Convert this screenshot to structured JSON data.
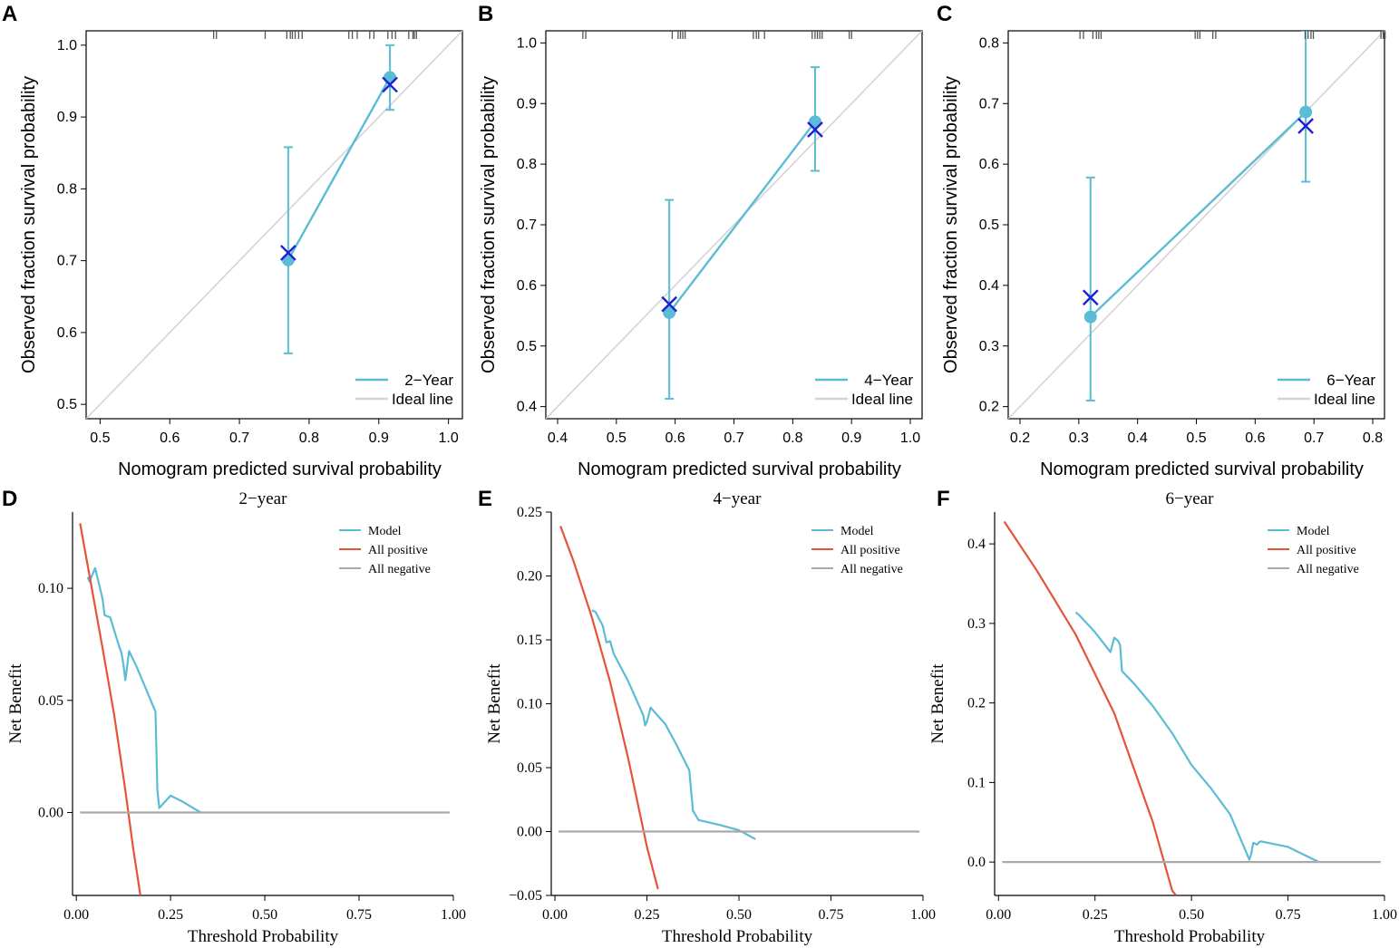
{
  "colors": {
    "model": "#5bbcd6",
    "ideal": "#d4d4d4",
    "cross": "#1f1fd6",
    "all_positive": "#e5533b",
    "all_negative": "#a9a9a9",
    "axis": "#000000"
  },
  "chart_data": [
    {
      "panel": "A",
      "type": "line",
      "title": "",
      "xlabel": "Nomogram predicted survival probability",
      "ylabel": "Observed fraction survival probability",
      "xlim": [
        0.48,
        1.02
      ],
      "ylim": [
        0.48,
        1.02
      ],
      "xticks": [
        0.5,
        0.6,
        0.7,
        0.8,
        0.9,
        1.0
      ],
      "yticks": [
        0.5,
        0.6,
        0.7,
        0.8,
        0.9,
        1.0
      ],
      "xtick_labels": [
        "0.5",
        "0.6",
        "0.7",
        "0.8",
        "0.9",
        "1.0"
      ],
      "ytick_labels": [
        "0.5",
        "0.6",
        "0.7",
        "0.8",
        "0.9",
        "1.0"
      ],
      "legend": [
        {
          "label": "2−Year",
          "color": "model"
        },
        {
          "label": "Ideal line",
          "color": "ideal"
        }
      ],
      "ideal_line": [
        [
          0.48,
          0.48
        ],
        [
          1.02,
          1.02
        ]
      ],
      "points": [
        {
          "x": 0.77,
          "y": 0.701,
          "lo": 0.571,
          "hi": 0.858
        },
        {
          "x": 0.916,
          "y": 0.955,
          "lo": 0.91,
          "hi": 1.0
        }
      ],
      "crosses": [
        {
          "x": 0.77,
          "y": 0.711
        },
        {
          "x": 0.916,
          "y": 0.945
        }
      ],
      "rug": [
        0.663,
        0.667,
        0.737,
        0.768,
        0.773,
        0.776,
        0.78,
        0.785,
        0.79,
        0.857,
        0.862,
        0.869,
        0.887,
        0.893,
        0.913,
        0.919,
        0.924,
        0.943,
        0.949,
        0.951,
        0.954
      ]
    },
    {
      "panel": "B",
      "type": "line",
      "title": "",
      "xlabel": "Nomogram predicted survival probability",
      "ylabel": "Observed fraction survival probability",
      "xlim": [
        0.38,
        1.02
      ],
      "ylim": [
        0.38,
        1.02
      ],
      "xticks": [
        0.4,
        0.5,
        0.6,
        0.7,
        0.8,
        0.9,
        1.0
      ],
      "yticks": [
        0.4,
        0.5,
        0.6,
        0.7,
        0.8,
        0.9,
        1.0
      ],
      "xtick_labels": [
        "0.4",
        "0.5",
        "0.6",
        "0.7",
        "0.8",
        "0.9",
        "1.0"
      ],
      "ytick_labels": [
        "0.4",
        "0.5",
        "0.6",
        "0.7",
        "0.8",
        "0.9",
        "1.0"
      ],
      "legend": [
        {
          "label": "4−Year",
          "color": "model"
        },
        {
          "label": "Ideal line",
          "color": "ideal"
        }
      ],
      "ideal_line": [
        [
          0.38,
          0.38
        ],
        [
          1.02,
          1.02
        ]
      ],
      "points": [
        {
          "x": 0.59,
          "y": 0.555,
          "lo": 0.413,
          "hi": 0.741
        },
        {
          "x": 0.838,
          "y": 0.87,
          "lo": 0.789,
          "hi": 0.96
        }
      ],
      "crosses": [
        {
          "x": 0.59,
          "y": 0.569
        },
        {
          "x": 0.838,
          "y": 0.857
        }
      ],
      "rug": [
        0.443,
        0.448,
        0.595,
        0.605,
        0.609,
        0.613,
        0.617,
        0.733,
        0.738,
        0.742,
        0.752,
        0.833,
        0.838,
        0.842,
        0.846,
        0.85,
        0.896,
        0.9
      ]
    },
    {
      "panel": "C",
      "type": "line",
      "title": "",
      "xlabel": "Nomogram predicted survival probability",
      "ylabel": "Observed fraction survival probability",
      "xlim": [
        0.18,
        0.82
      ],
      "ylim": [
        0.18,
        0.82
      ],
      "xticks": [
        0.2,
        0.3,
        0.4,
        0.5,
        0.6,
        0.7,
        0.8
      ],
      "yticks": [
        0.2,
        0.3,
        0.4,
        0.5,
        0.6,
        0.7,
        0.8
      ],
      "xtick_labels": [
        "0.2",
        "0.3",
        "0.4",
        "0.5",
        "0.6",
        "0.7",
        "0.8"
      ],
      "ytick_labels": [
        "0.2",
        "0.3",
        "0.4",
        "0.5",
        "0.6",
        "0.7",
        "0.8"
      ],
      "legend": [
        {
          "label": "6−Year",
          "color": "model"
        },
        {
          "label": "Ideal line",
          "color": "ideal"
        }
      ],
      "ideal_line": [
        [
          0.18,
          0.18
        ],
        [
          0.82,
          0.82
        ]
      ],
      "points": [
        {
          "x": 0.32,
          "y": 0.348,
          "lo": 0.21,
          "hi": 0.578
        },
        {
          "x": 0.686,
          "y": 0.686,
          "lo": 0.571,
          "hi": 0.82
        }
      ],
      "crosses": [
        {
          "x": 0.32,
          "y": 0.38
        },
        {
          "x": 0.686,
          "y": 0.663
        }
      ],
      "rug": [
        0.302,
        0.308,
        0.324,
        0.33,
        0.334,
        0.338,
        0.498,
        0.502,
        0.506,
        0.528,
        0.533,
        0.685,
        0.69,
        0.695,
        0.699,
        0.814,
        0.818,
        0.821
      ]
    },
    {
      "panel": "D",
      "type": "line",
      "title": "2−year",
      "xlabel": "Threshold Probability",
      "ylabel": "Net Benefit",
      "xlim": [
        -0.01,
        1.0
      ],
      "ylim": [
        -0.037,
        0.134
      ],
      "xticks": [
        0.0,
        0.25,
        0.5,
        0.75,
        1.0
      ],
      "yticks": [
        0.0,
        0.05,
        0.1
      ],
      "xtick_labels": [
        "0.00",
        "0.25",
        "0.50",
        "0.75",
        "1.00"
      ],
      "ytick_labels": [
        "0.00",
        "0.05",
        "0.10"
      ],
      "legend": [
        {
          "label": "Model",
          "color": "model"
        },
        {
          "label": "All positive",
          "color": "all_positive"
        },
        {
          "label": "All negative",
          "color": "all_negative"
        }
      ],
      "series": [
        {
          "name": "Model",
          "color": "model",
          "x": [
            0.03,
            0.035,
            0.05,
            0.07,
            0.075,
            0.09,
            0.11,
            0.12,
            0.125,
            0.13,
            0.14,
            0.16,
            0.2,
            0.21,
            0.215,
            0.22,
            0.25,
            0.28,
            0.33
          ],
          "y": [
            0.105,
            0.103,
            0.109,
            0.095,
            0.088,
            0.087,
            0.076,
            0.071,
            0.066,
            0.059,
            0.072,
            0.065,
            0.049,
            0.045,
            0.01,
            0.002,
            0.0075,
            0.005,
            0.0
          ]
        },
        {
          "name": "All positive",
          "color": "all_positive",
          "x": [
            0.01,
            0.04,
            0.07,
            0.1,
            0.13,
            0.15,
            0.17
          ],
          "y": [
            0.129,
            0.101,
            0.073,
            0.044,
            0.01,
            -0.015,
            -0.037
          ]
        },
        {
          "name": "All negative",
          "color": "all_negative",
          "x": [
            0.01,
            0.99
          ],
          "y": [
            0.0,
            0.0
          ]
        }
      ]
    },
    {
      "panel": "E",
      "type": "line",
      "title": "4−year",
      "xlabel": "Threshold Probability",
      "ylabel": "Net Benefit",
      "xlim": [
        -0.01,
        1.0
      ],
      "ylim": [
        -0.05,
        0.25
      ],
      "xticks": [
        0.0,
        0.25,
        0.5,
        0.75,
        1.0
      ],
      "yticks": [
        -0.05,
        0.0,
        0.05,
        0.1,
        0.15,
        0.2,
        0.25
      ],
      "xtick_labels": [
        "0.00",
        "0.25",
        "0.50",
        "0.75",
        "1.00"
      ],
      "ytick_labels": [
        "−0.05",
        "0.00",
        "0.05",
        "0.10",
        "0.15",
        "0.20",
        "0.25"
      ],
      "legend": [
        {
          "label": "Model",
          "color": "model"
        },
        {
          "label": "All positive",
          "color": "all_positive"
        },
        {
          "label": "All negative",
          "color": "all_negative"
        }
      ],
      "series": [
        {
          "name": "Model",
          "color": "model",
          "x": [
            0.1,
            0.11,
            0.13,
            0.14,
            0.15,
            0.16,
            0.2,
            0.24,
            0.245,
            0.25,
            0.26,
            0.3,
            0.33,
            0.365,
            0.375,
            0.38,
            0.39,
            0.45,
            0.5,
            0.545
          ],
          "y": [
            0.173,
            0.172,
            0.161,
            0.148,
            0.149,
            0.139,
            0.117,
            0.091,
            0.083,
            0.086,
            0.097,
            0.084,
            0.068,
            0.048,
            0.016,
            0.014,
            0.009,
            0.005,
            0.001,
            -0.006
          ]
        },
        {
          "name": "All positive",
          "color": "all_positive",
          "x": [
            0.015,
            0.05,
            0.1,
            0.15,
            0.2,
            0.25,
            0.28
          ],
          "y": [
            0.239,
            0.212,
            0.168,
            0.117,
            0.056,
            -0.012,
            -0.045
          ]
        },
        {
          "name": "All negative",
          "color": "all_negative",
          "x": [
            0.01,
            0.99
          ],
          "y": [
            0.0,
            0.0
          ]
        }
      ]
    },
    {
      "panel": "F",
      "type": "line",
      "title": "6−year",
      "xlabel": "Threshold Probability",
      "ylabel": "Net Benefit",
      "xlim": [
        -0.01,
        1.0
      ],
      "ylim": [
        -0.042,
        0.44
      ],
      "xticks": [
        0.0,
        0.25,
        0.5,
        0.75,
        1.0
      ],
      "yticks": [
        0.0,
        0.1,
        0.2,
        0.3,
        0.4
      ],
      "xtick_labels": [
        "0.00",
        "0.25",
        "0.50",
        "0.75",
        "1.00"
      ],
      "ytick_labels": [
        "0.0",
        "0.1",
        "0.2",
        "0.3",
        "0.4"
      ],
      "legend": [
        {
          "label": "Model",
          "color": "model"
        },
        {
          "label": "All positive",
          "color": "all_positive"
        },
        {
          "label": "All negative",
          "color": "all_negative"
        }
      ],
      "series": [
        {
          "name": "Model",
          "color": "model",
          "x": [
            0.2,
            0.21,
            0.25,
            0.29,
            0.3,
            0.31,
            0.315,
            0.32,
            0.35,
            0.4,
            0.45,
            0.48,
            0.5,
            0.55,
            0.6,
            0.65,
            0.655,
            0.66,
            0.67,
            0.675,
            0.68,
            0.75,
            0.83
          ],
          "y": [
            0.314,
            0.31,
            0.289,
            0.264,
            0.282,
            0.278,
            0.273,
            0.24,
            0.225,
            0.196,
            0.162,
            0.138,
            0.122,
            0.093,
            0.06,
            0.003,
            0.011,
            0.024,
            0.022,
            0.025,
            0.026,
            0.019,
            0.0
          ]
        },
        {
          "name": "All positive",
          "color": "all_positive",
          "x": [
            0.015,
            0.1,
            0.2,
            0.3,
            0.4,
            0.45,
            0.46
          ],
          "y": [
            0.428,
            0.366,
            0.286,
            0.187,
            0.05,
            -0.036,
            -0.042
          ]
        },
        {
          "name": "All negative",
          "color": "all_negative",
          "x": [
            0.01,
            0.99
          ],
          "y": [
            0.0,
            0.0
          ]
        }
      ]
    }
  ]
}
